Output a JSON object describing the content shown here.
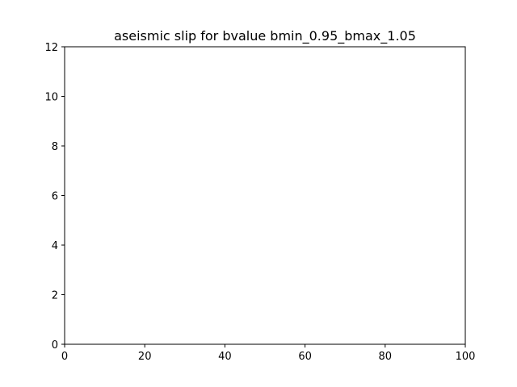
{
  "chart_data": {
    "type": "line",
    "title": "aseismic slip for bvalue bmin_0.95_bmax_1.05",
    "xlabel": "",
    "ylabel": "",
    "xlim": [
      0,
      100
    ],
    "ylim": [
      0,
      12
    ],
    "xticks": [
      0,
      20,
      40,
      60,
      80,
      100
    ],
    "yticks": [
      0,
      2,
      4,
      6,
      8,
      10,
      12
    ],
    "xtick_labels": [
      "0",
      "20",
      "40",
      "60",
      "80",
      "100"
    ],
    "ytick_labels": [
      "0",
      "2",
      "4",
      "6",
      "8",
      "10",
      "12"
    ],
    "series": [],
    "grid": false,
    "legend": null
  },
  "colors": {
    "background": "#ffffff",
    "axes": "#000000"
  }
}
